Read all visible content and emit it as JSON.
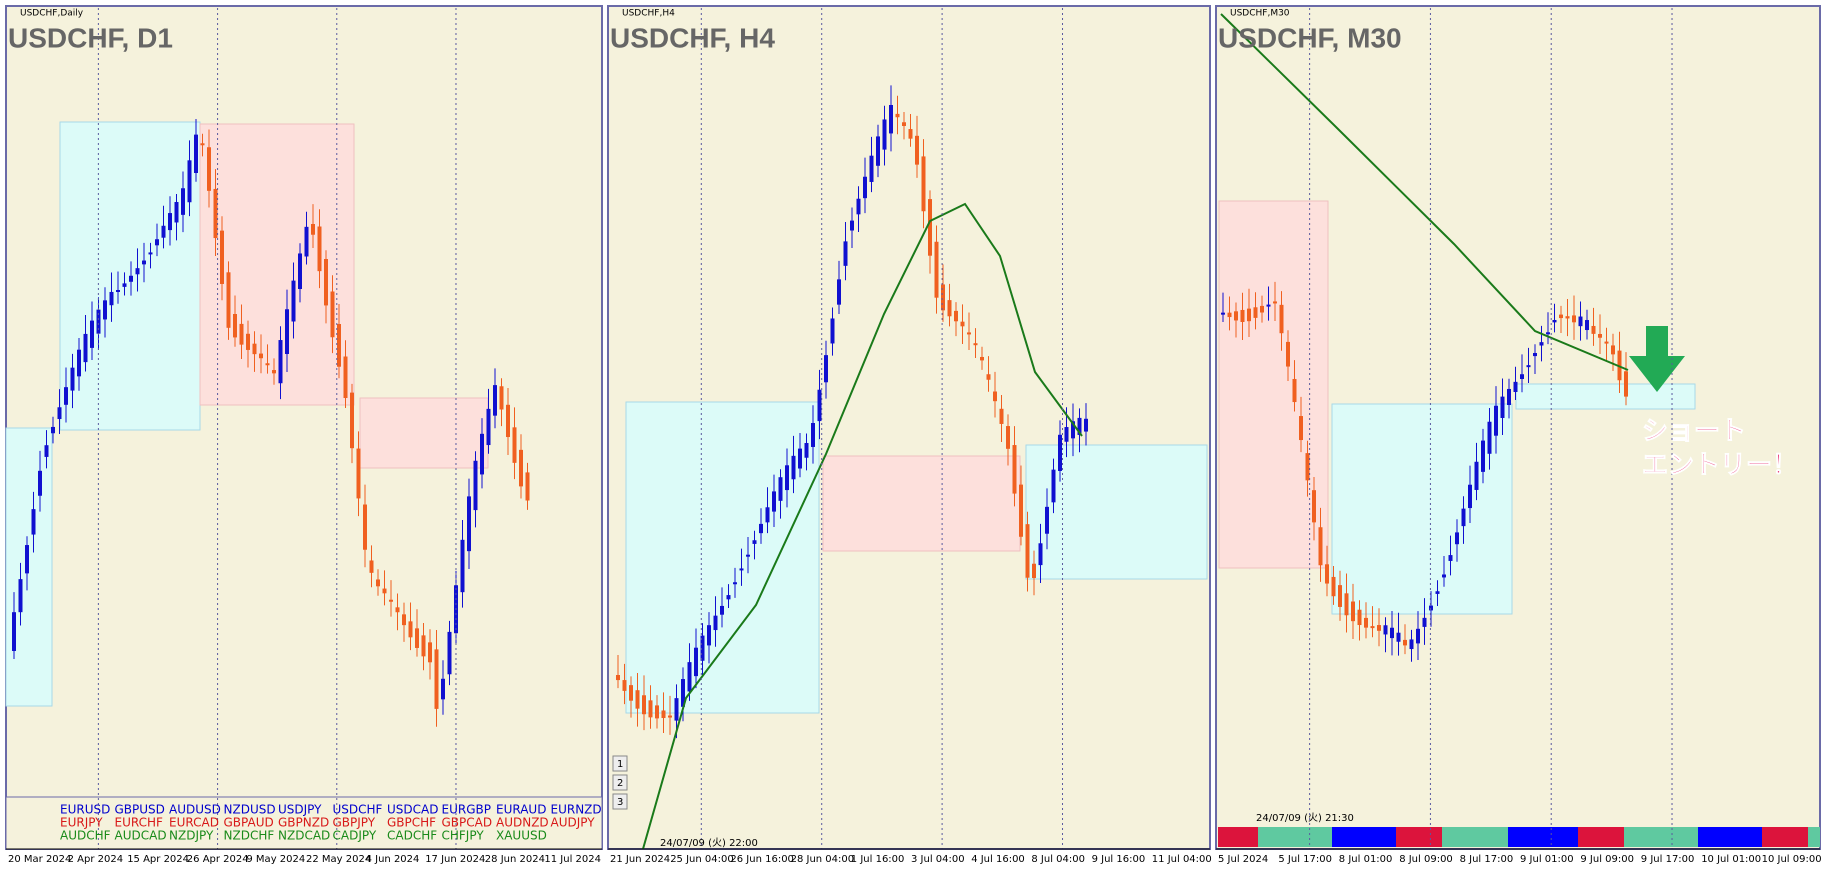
{
  "panels": [
    {
      "caption": "USDCHF,Daily",
      "title": "USDCHF, D1",
      "dates": [
        "20 Mar 2024",
        "2 Apr 2024",
        "15 Apr 2024",
        "26 Apr 2024",
        "9 May 2024",
        "22 May 2024",
        "4 Jun 2024",
        "17 Jun 2024",
        "28 Jun 2024",
        "11 Jul 2024"
      ]
    },
    {
      "caption": "USDCHF,H4",
      "title": "USDCHF, H4",
      "dates": [
        "21 Jun 2024",
        "25 Jun 04:00",
        "26 Jun 16:00",
        "28 Jun 04:00",
        "1 Jul 16:00",
        "3 Jul 04:00",
        "4 Jul 16:00",
        "8 Jul 04:00",
        "9 Jul 16:00",
        "11 Jul 04:00"
      ],
      "timestamp": "24/07/09 (火) 22:00",
      "buttons": [
        "1",
        "2",
        "3"
      ]
    },
    {
      "caption": "USDCHF,M30",
      "title": "USDCHF, M30",
      "dates": [
        "5 Jul 2024",
        "5 Jul 17:00",
        "8 Jul 01:00",
        "8 Jul 09:00",
        "8 Jul 17:00",
        "9 Jul 01:00",
        "9 Jul 09:00",
        "9 Jul 17:00",
        "10 Jul 01:00",
        "10 Jul 09:00"
      ],
      "timestamp": "24/07/09 (火) 21:30",
      "annotation": [
        "ショート",
        "エントリー！"
      ]
    }
  ],
  "pair_table": {
    "rows": [
      [
        "EURUSD",
        "GBPUSD",
        "AUDUSD",
        "NZDUSD",
        "USDJPY",
        "USDCHF",
        "USDCAD",
        "EURGBP",
        "EURAUD",
        "EURNZD"
      ],
      [
        "EURJPY",
        "EURCHF",
        "EURCAD",
        "GBPAUD",
        "GBPNZD",
        "GBPJPY",
        "GBPCHF",
        "GBPCAD",
        "AUDNZD",
        "AUDJPY"
      ],
      [
        "AUDCHF",
        "AUDCAD",
        "NZDJPY",
        "NZDCHF",
        "NZDCAD",
        "CADJPY",
        "CADCHF",
        "CHFJPY",
        "XAUUSD"
      ]
    ]
  }
}
